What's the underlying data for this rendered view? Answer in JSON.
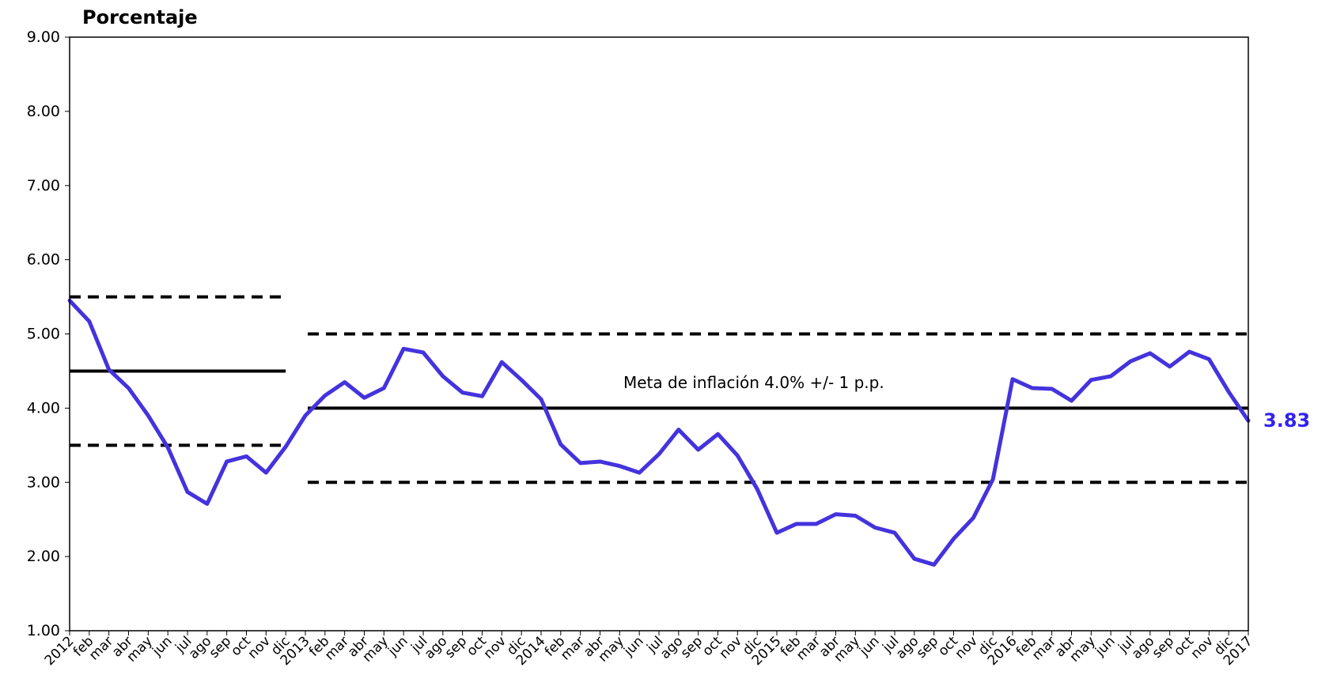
{
  "chart_data": {
    "type": "line",
    "ylabel": "Porcentaje",
    "ylim": [
      1.0,
      9.0
    ],
    "y_ticks": [
      "1.00",
      "2.00",
      "3.00",
      "4.00",
      "5.00",
      "6.00",
      "7.00",
      "8.00",
      "9.00"
    ],
    "grid": false,
    "categories": [
      "2012",
      "feb",
      "mar",
      "abr",
      "may",
      "jun",
      "jul",
      "ago",
      "sep",
      "oct",
      "nov",
      "dic",
      "2013",
      "feb",
      "mar",
      "abr",
      "may",
      "jun",
      "jul",
      "ago",
      "sep",
      "oct",
      "nov",
      "dic",
      "2014",
      "feb",
      "mar",
      "abr",
      "may",
      "jun",
      "jul",
      "ago",
      "sep",
      "oct",
      "nov",
      "dic",
      "2015",
      "feb",
      "mar",
      "abr",
      "may",
      "jun",
      "jul",
      "ago",
      "sep",
      "oct",
      "nov",
      "dic",
      "2016",
      "feb",
      "mar",
      "abr",
      "may",
      "jun",
      "jul",
      "ago",
      "sep",
      "oct",
      "nov",
      "dic",
      "2017"
    ],
    "series": [
      {
        "color": "#4433dd",
        "values": [
          5.45,
          5.17,
          4.52,
          4.27,
          3.9,
          3.47,
          2.87,
          2.71,
          3.28,
          3.35,
          3.13,
          3.48,
          3.9,
          4.17,
          4.35,
          4.14,
          4.27,
          4.8,
          4.75,
          4.43,
          4.21,
          4.16,
          4.62,
          4.38,
          4.12,
          3.51,
          3.26,
          3.28,
          3.22,
          3.13,
          3.38,
          3.71,
          3.44,
          3.65,
          3.36,
          2.91,
          2.32,
          2.44,
          2.44,
          2.57,
          2.55,
          2.39,
          2.32,
          1.97,
          1.89,
          2.24,
          2.52,
          3.04,
          4.39,
          4.27,
          4.26,
          4.1,
          4.38,
          4.43,
          4.63,
          4.74,
          4.56,
          4.76,
          4.66,
          4.22,
          3.83
        ]
      }
    ],
    "reference_lines": [
      {
        "kind": "solid",
        "value": 4.5,
        "from": "2012",
        "to": "dic",
        "color": "#000000"
      },
      {
        "kind": "dashed",
        "value": 5.5,
        "from": "2012",
        "to": "dic",
        "color": "#000000"
      },
      {
        "kind": "dashed",
        "value": 3.5,
        "from": "2012",
        "to": "dic",
        "color": "#000000"
      },
      {
        "kind": "solid",
        "value": 4.0,
        "from": "2013",
        "to": "2017",
        "color": "#000000"
      },
      {
        "kind": "dashed",
        "value": 5.0,
        "from": "2013",
        "to": "2017",
        "color": "#000000"
      },
      {
        "kind": "dashed",
        "value": 3.0,
        "from": "2013",
        "to": "2017",
        "color": "#000000"
      }
    ],
    "annotations": {
      "target_text": "Meta de inflación 4.0% +/- 1 p.p.",
      "last_value_label": "3.83",
      "last_value_color": "#3322ee"
    }
  }
}
